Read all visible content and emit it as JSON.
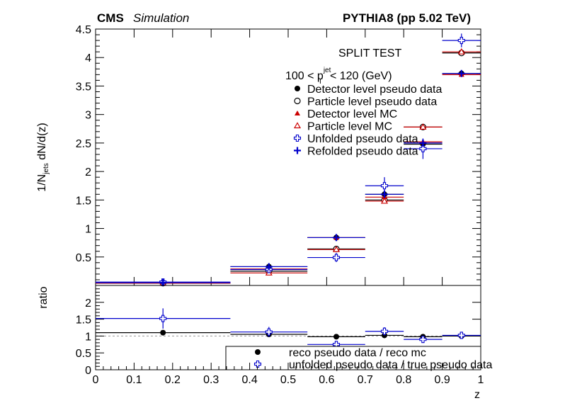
{
  "header": {
    "experiment": "CMS",
    "simulation": "Simulation",
    "generator": "PYTHIA8 (pp 5.02 TeV)"
  },
  "top": {
    "title": "SPLIT TEST",
    "selection": {
      "pre": "100 < p",
      "sup": "jet",
      "sub": "T",
      "post": " < 120 (GeV)"
    },
    "ylabel": {
      "pre": "1/N",
      "sub": "jets",
      "post": " dN/d(z)"
    },
    "ylim": [
      0,
      4.5
    ],
    "yticks": [
      "4.5",
      "4",
      "3.5",
      "3",
      "2.5",
      "2",
      "1.5",
      "1",
      "0.5",
      "0"
    ],
    "legend": [
      {
        "label": "Detector level pseudo data",
        "marker": "dot",
        "color": "#000000"
      },
      {
        "label": "Particle level pseudo data",
        "marker": "circle-open",
        "color": "#000000"
      },
      {
        "label": "Detector level MC",
        "marker": "triangle",
        "color": "#cc0000"
      },
      {
        "label": "Particle level MC",
        "marker": "triangle-open",
        "color": "#cc0000"
      },
      {
        "label": "Unfolded pseudo data",
        "marker": "cross-open",
        "color": "#0000cc"
      },
      {
        "label": "Refolded pseudo data",
        "marker": "cross",
        "color": "#0000cc"
      }
    ]
  },
  "ratio": {
    "ylabel": "ratio",
    "ylim": [
      0,
      2.5
    ],
    "yticks": [
      "2",
      "1.5",
      "1",
      "0.5",
      "0"
    ],
    "legend": [
      {
        "label": "reco pseudo data / reco mc",
        "marker": "dot",
        "color": "#000000"
      },
      {
        "label": "unfolded pseudo data / true pseudo data",
        "marker": "cross-open",
        "color": "#0000cc"
      }
    ]
  },
  "xaxis": {
    "label": "z",
    "xlim": [
      0,
      1
    ],
    "ticks": [
      "0",
      "0.1",
      "0.2",
      "0.3",
      "0.4",
      "0.5",
      "0.6",
      "0.7",
      "0.8",
      "0.9",
      "1"
    ]
  },
  "chart_data": {
    "type": "scatter",
    "bins": [
      [
        0,
        0.35
      ],
      [
        0.35,
        0.55
      ],
      [
        0.55,
        0.7
      ],
      [
        0.7,
        0.8
      ],
      [
        0.8,
        0.9
      ],
      [
        0.9,
        1.0
      ]
    ],
    "centers": [
      0.175,
      0.45,
      0.625,
      0.75,
      0.85,
      0.95
    ],
    "series": [
      {
        "name": "Detector level pseudo data",
        "values": [
          0.05,
          0.33,
          0.84,
          1.6,
          2.48,
          3.72
        ]
      },
      {
        "name": "Particle level pseudo data",
        "values": [
          0.04,
          0.25,
          0.64,
          1.5,
          2.78,
          4.08
        ]
      },
      {
        "name": "Detector level MC",
        "values": [
          0.05,
          0.29,
          0.84,
          1.55,
          2.52,
          3.7
        ]
      },
      {
        "name": "Particle level MC",
        "values": [
          0.04,
          0.22,
          0.63,
          1.48,
          2.78,
          4.1
        ]
      },
      {
        "name": "Unfolded pseudo data",
        "values": [
          0.06,
          0.28,
          0.49,
          1.75,
          2.4,
          4.3
        ],
        "errors": [
          0.02,
          0.05,
          0.08,
          0.15,
          0.18,
          0.12
        ]
      },
      {
        "name": "Refolded pseudo data",
        "values": [
          0.05,
          0.33,
          0.84,
          1.6,
          2.5,
          3.72
        ]
      }
    ],
    "ratio_series": [
      {
        "name": "reco pseudo data / reco mc",
        "values": [
          1.1,
          1.05,
          0.98,
          1.02,
          0.98,
          1.0
        ]
      },
      {
        "name": "unfolded pseudo data / true pseudo data",
        "values": [
          1.52,
          1.12,
          0.75,
          1.14,
          0.9,
          1.02
        ],
        "errors": [
          0.3,
          0.15,
          0.1,
          0.12,
          0.08,
          0.05
        ]
      }
    ],
    "xlabel": "z"
  }
}
